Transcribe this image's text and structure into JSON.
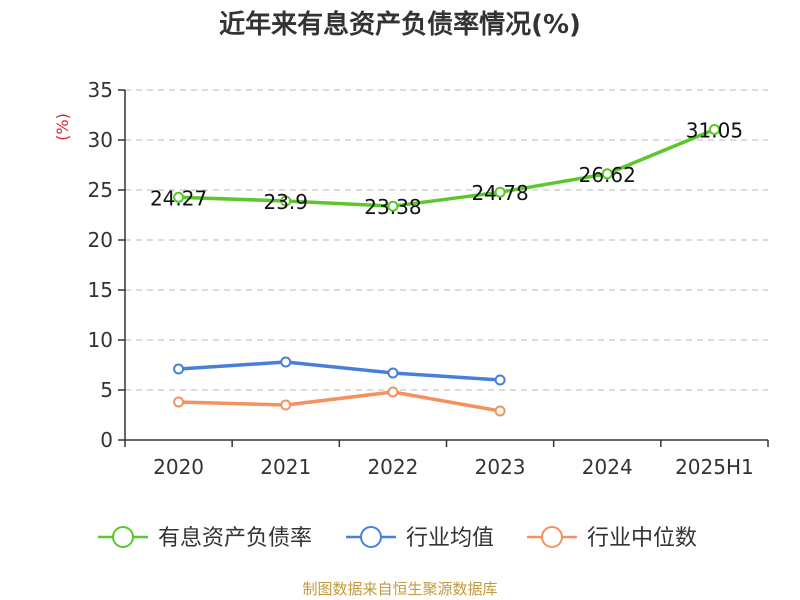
{
  "chart_data": {
    "type": "line",
    "title": "近年来有息资产负债率情况(%)",
    "ylabel": "(%)",
    "xlabel": "",
    "categories": [
      "2020",
      "2021",
      "2022",
      "2023",
      "2024",
      "2025H1"
    ],
    "ylim": [
      0,
      35
    ],
    "yticks": [
      0,
      5,
      10,
      15,
      20,
      25,
      30,
      35
    ],
    "grid": true,
    "legend_position": "bottom",
    "series": [
      {
        "name": "有息资产负债率",
        "color": "#5cc72d",
        "values": [
          24.27,
          23.9,
          23.38,
          24.78,
          26.62,
          31.05
        ],
        "labels": [
          "24.27",
          "23.9",
          "23.38",
          "24.78",
          "26.62",
          "31.05"
        ]
      },
      {
        "name": "行业均值",
        "color": "#4a7fd9",
        "values": [
          7.1,
          7.8,
          6.7,
          6.0,
          null,
          null
        ]
      },
      {
        "name": "行业中位数",
        "color": "#f4915e",
        "values": [
          3.8,
          3.5,
          4.8,
          2.9,
          null,
          null
        ]
      }
    ],
    "source": "制图数据来自恒生聚源数据库"
  },
  "colors": {
    "axis": "#333333",
    "grid": "#c8c8c8",
    "unit": "#d9252b",
    "source": "#c29a3c"
  }
}
